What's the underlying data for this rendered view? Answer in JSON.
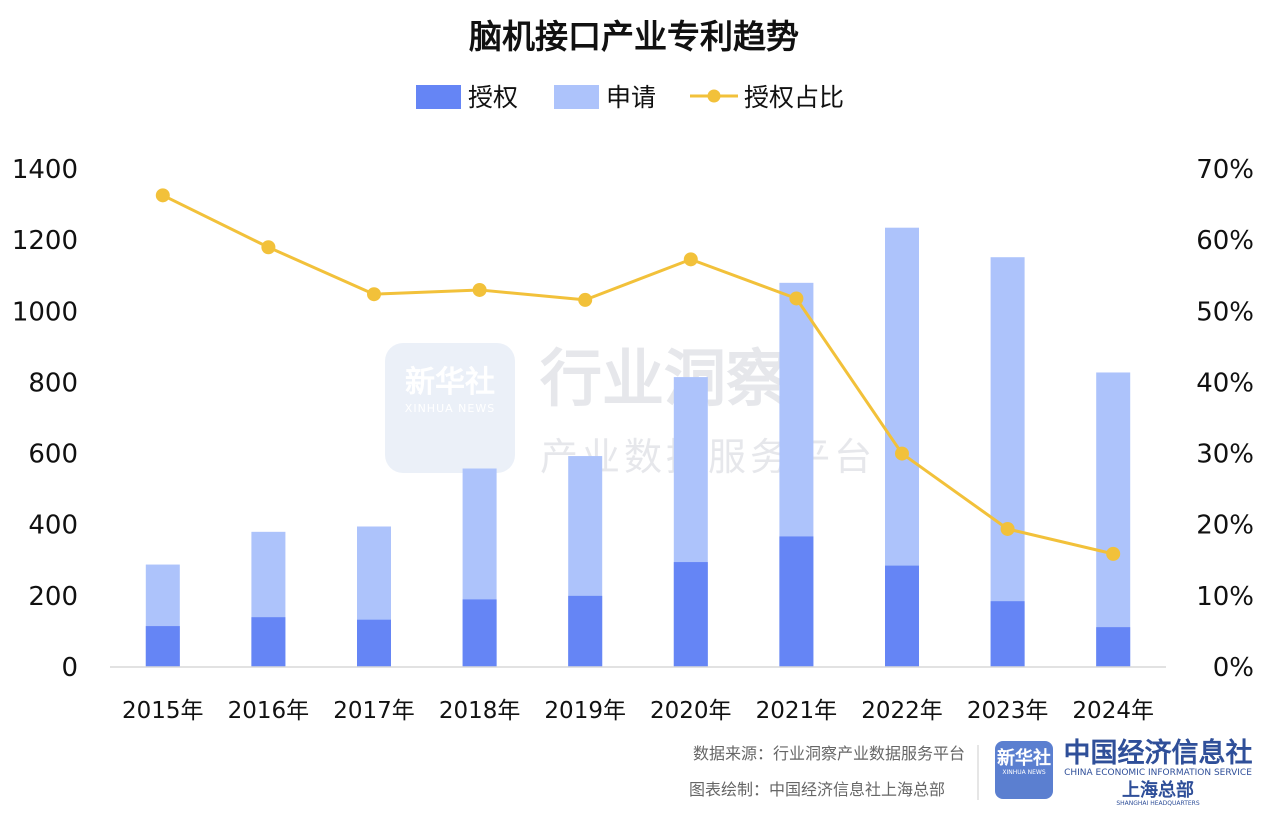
{
  "chart_data": {
    "type": "bar",
    "title": "脑机接口产业专利趋势",
    "categories": [
      "2015年",
      "2016年",
      "2017年",
      "2018年",
      "2019年",
      "2020年",
      "2021年",
      "2022年",
      "2023年",
      "2024年"
    ],
    "series": [
      {
        "name": "授权",
        "kind": "bar",
        "axis": "left",
        "color": "#6585f5",
        "values": [
          115,
          140,
          133,
          190,
          200,
          295,
          367,
          285,
          185,
          112
        ]
      },
      {
        "name": "申请",
        "kind": "bar",
        "axis": "left",
        "color": "#adc3fb",
        "values": [
          288,
          380,
          395,
          558,
          593,
          815,
          1080,
          1235,
          1152,
          828
        ]
      },
      {
        "name": "授权占比",
        "kind": "line",
        "axis": "right",
        "color": "#f2c13a",
        "values": [
          66.3,
          59.0,
          52.4,
          53.0,
          51.6,
          57.3,
          51.8,
          30.0,
          19.4,
          15.9
        ]
      }
    ],
    "left_axis": {
      "ylim": [
        0,
        1400
      ],
      "ticks": [
        "0",
        "200",
        "400",
        "600",
        "800",
        "1000",
        "1200",
        "1400"
      ]
    },
    "right_axis": {
      "ylim": [
        0,
        70
      ],
      "ticks": [
        "0%",
        "10%",
        "20%",
        "30%",
        "40%",
        "50%",
        "60%",
        "70%"
      ]
    },
    "legend_position": "top-center",
    "grid": false
  },
  "watermark": {
    "logo_text": "新华社",
    "logo_subtext": "XINHUA NEWS",
    "main": "行业洞察",
    "sub": "产业数据服务平台"
  },
  "footer": {
    "source_line": "数据来源：行业洞察产业数据服务平台",
    "credit_line": "图表绘制：中国经济信息社上海总部",
    "logo_cn": "新华社",
    "logo_en": "XINHUA NEWS",
    "brand_cn": "中国经济信息社",
    "brand_en": "CHINA ECONOMIC INFORMATION SERVICE",
    "brand_branch": "上海总部",
    "brand_branch_en": "SHANGHAI HEADQUARTERS"
  }
}
